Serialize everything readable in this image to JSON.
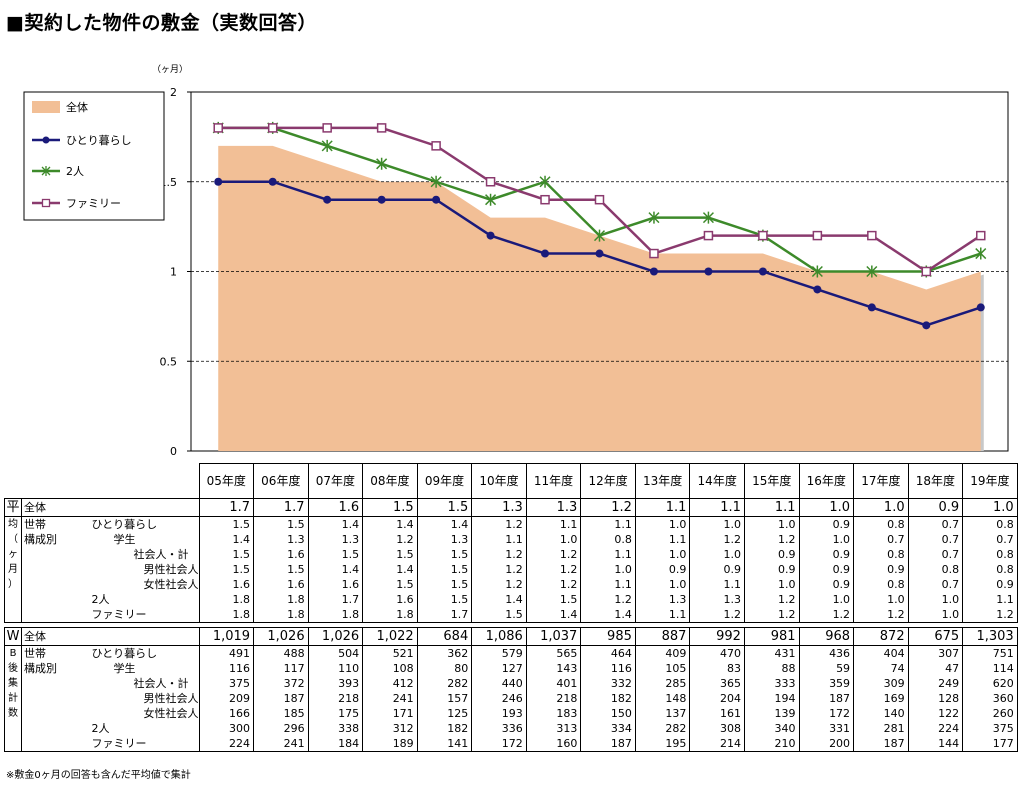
{
  "title": "■契約した物件の敷金（実数回答）",
  "note": "※敷金0ヶ月の回答も含んだ平均値で集計",
  "chart_data": {
    "type": "line",
    "unit_label": "（ヶ月）",
    "ylim": [
      0,
      2
    ],
    "yticks": [
      "0",
      "0.5",
      "1",
      "1.5",
      "2"
    ],
    "categories": [
      "05年度",
      "06年度",
      "07年度",
      "08年度",
      "09年度",
      "10年度",
      "11年度",
      "12年度",
      "13年度",
      "14年度",
      "15年度",
      "16年度",
      "17年度",
      "18年度",
      "19年度"
    ],
    "area": {
      "name": "全体",
      "color": "#f2bf96",
      "values": [
        1.7,
        1.7,
        1.6,
        1.5,
        1.5,
        1.3,
        1.3,
        1.2,
        1.1,
        1.1,
        1.1,
        1.0,
        1.0,
        0.9,
        1.0
      ]
    },
    "series": [
      {
        "name": "ひとり暮らし",
        "color": "#1a1a7a",
        "marker": "dot",
        "values": [
          1.5,
          1.5,
          1.4,
          1.4,
          1.4,
          1.2,
          1.1,
          1.1,
          1.0,
          1.0,
          1.0,
          0.9,
          0.8,
          0.7,
          0.8
        ]
      },
      {
        "name": "2人",
        "color": "#3d8a2a",
        "marker": "star",
        "values": [
          1.8,
          1.8,
          1.7,
          1.6,
          1.5,
          1.4,
          1.5,
          1.2,
          1.3,
          1.3,
          1.2,
          1.0,
          1.0,
          1.0,
          1.1
        ]
      },
      {
        "name": "ファミリー",
        "color": "#8a3a6e",
        "marker": "square",
        "values": [
          1.8,
          1.8,
          1.8,
          1.8,
          1.7,
          1.5,
          1.4,
          1.4,
          1.1,
          1.2,
          1.2,
          1.2,
          1.2,
          1.0,
          1.2
        ]
      }
    ],
    "legend": [
      "全体",
      "ひとり暮らし",
      "2人",
      "ファミリー"
    ],
    "legend_position": "top-left",
    "grid": "dashed-horizontal"
  },
  "table": {
    "avg_group_label": [
      "平",
      "均",
      "（",
      "ヶ",
      "月",
      "）"
    ],
    "cnt_group_label": [
      "W",
      "B",
      "後",
      "集",
      "計",
      "数"
    ],
    "avg_total": {
      "label": "全体",
      "values": [
        "1.7",
        "1.7",
        "1.6",
        "1.5",
        "1.5",
        "1.3",
        "1.3",
        "1.2",
        "1.1",
        "1.1",
        "1.1",
        "1.0",
        "1.0",
        "0.9",
        "1.0"
      ]
    },
    "avg_rows": [
      {
        "label": "ひとり暮らし",
        "values": [
          "1.5",
          "1.5",
          "1.4",
          "1.4",
          "1.4",
          "1.2",
          "1.1",
          "1.1",
          "1.0",
          "1.0",
          "1.0",
          "0.9",
          "0.8",
          "0.7",
          "0.8"
        ]
      },
      {
        "label": "学生",
        "values": [
          "1.4",
          "1.3",
          "1.3",
          "1.2",
          "1.3",
          "1.1",
          "1.0",
          "0.8",
          "1.1",
          "1.2",
          "1.2",
          "1.0",
          "0.7",
          "0.7",
          "0.7"
        ]
      },
      {
        "label": "社会人・計",
        "values": [
          "1.5",
          "1.6",
          "1.5",
          "1.5",
          "1.5",
          "1.2",
          "1.2",
          "1.1",
          "1.0",
          "1.0",
          "0.9",
          "0.9",
          "0.8",
          "0.7",
          "0.8"
        ]
      },
      {
        "label": "男性社会人",
        "values": [
          "1.5",
          "1.5",
          "1.4",
          "1.4",
          "1.5",
          "1.2",
          "1.2",
          "1.0",
          "0.9",
          "0.9",
          "0.9",
          "0.9",
          "0.9",
          "0.8",
          "0.8"
        ]
      },
      {
        "label": "女性社会人",
        "values": [
          "1.6",
          "1.6",
          "1.6",
          "1.5",
          "1.5",
          "1.2",
          "1.2",
          "1.1",
          "1.0",
          "1.1",
          "1.0",
          "0.9",
          "0.8",
          "0.7",
          "0.9"
        ]
      },
      {
        "label": "2人",
        "values": [
          "1.8",
          "1.8",
          "1.7",
          "1.6",
          "1.5",
          "1.4",
          "1.5",
          "1.2",
          "1.3",
          "1.3",
          "1.2",
          "1.0",
          "1.0",
          "1.0",
          "1.1"
        ]
      },
      {
        "label": "ファミリー",
        "values": [
          "1.8",
          "1.8",
          "1.8",
          "1.8",
          "1.7",
          "1.5",
          "1.4",
          "1.4",
          "1.1",
          "1.2",
          "1.2",
          "1.2",
          "1.2",
          "1.0",
          "1.2"
        ]
      }
    ],
    "cnt_total": {
      "label": "全体",
      "values": [
        "1,019",
        "1,026",
        "1,026",
        "1,022",
        "684",
        "1,086",
        "1,037",
        "985",
        "887",
        "992",
        "981",
        "968",
        "872",
        "675",
        "1,303"
      ]
    },
    "cnt_rows": [
      {
        "label": "ひとり暮らし",
        "values": [
          "491",
          "488",
          "504",
          "521",
          "362",
          "579",
          "565",
          "464",
          "409",
          "470",
          "431",
          "436",
          "404",
          "307",
          "751"
        ]
      },
      {
        "label": "学生",
        "values": [
          "116",
          "117",
          "110",
          "108",
          "80",
          "127",
          "143",
          "116",
          "105",
          "83",
          "88",
          "59",
          "74",
          "47",
          "114"
        ]
      },
      {
        "label": "社会人・計",
        "values": [
          "375",
          "372",
          "393",
          "412",
          "282",
          "440",
          "401",
          "332",
          "285",
          "365",
          "333",
          "359",
          "309",
          "249",
          "620"
        ]
      },
      {
        "label": "男性社会人",
        "values": [
          "209",
          "187",
          "218",
          "241",
          "157",
          "246",
          "218",
          "182",
          "148",
          "204",
          "194",
          "187",
          "169",
          "128",
          "360"
        ]
      },
      {
        "label": "女性社会人",
        "values": [
          "166",
          "185",
          "175",
          "171",
          "125",
          "193",
          "183",
          "150",
          "137",
          "161",
          "139",
          "172",
          "140",
          "122",
          "260"
        ]
      },
      {
        "label": "2人",
        "values": [
          "300",
          "296",
          "338",
          "312",
          "182",
          "336",
          "313",
          "334",
          "282",
          "308",
          "340",
          "331",
          "281",
          "224",
          "375"
        ]
      },
      {
        "label": "ファミリー",
        "values": [
          "224",
          "241",
          "184",
          "189",
          "141",
          "172",
          "160",
          "187",
          "195",
          "214",
          "210",
          "200",
          "187",
          "144",
          "177"
        ]
      }
    ],
    "group_label_1": "世帯",
    "group_label_2": "構成別"
  }
}
